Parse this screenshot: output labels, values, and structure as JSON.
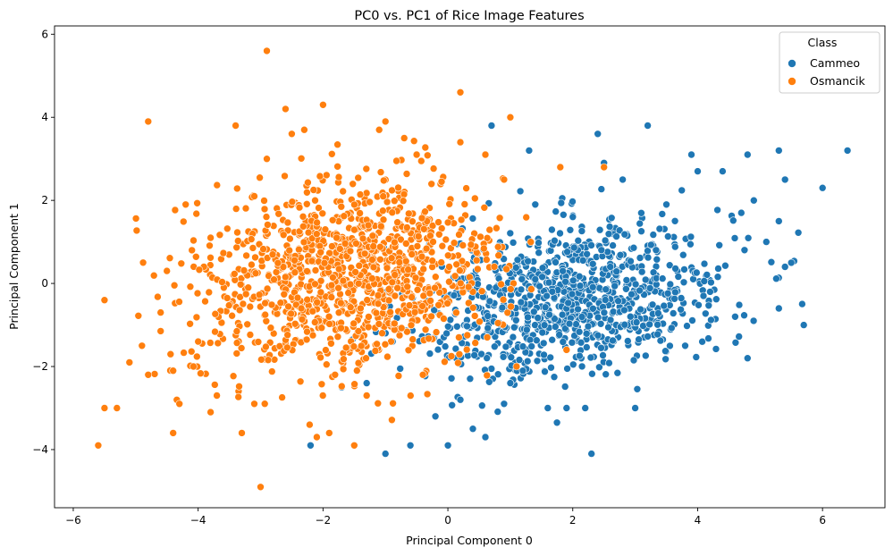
{
  "chart_data": {
    "type": "scatter",
    "title": "PC0 vs. PC1 of Rice Image Features",
    "xlabel": "Principal Component 0",
    "ylabel": "Principal Component 1",
    "xlim": [
      -6.3,
      7.0
    ],
    "ylim": [
      -5.4,
      6.2
    ],
    "xticks": [
      -6,
      -4,
      -2,
      0,
      2,
      4,
      6
    ],
    "yticks": [
      -4,
      -2,
      0,
      2,
      4,
      6
    ],
    "xtick_labels": [
      "−6",
      "−4",
      "−2",
      "0",
      "2",
      "4",
      "6"
    ],
    "ytick_labels": [
      "−4",
      "−2",
      "0",
      "2",
      "4",
      "6"
    ],
    "grid": false,
    "legend": {
      "title": "Class",
      "placement": "top-right",
      "entries": [
        "Cammeo",
        "Osmancik"
      ]
    },
    "series": [
      {
        "name": "Cammeo",
        "color": "#1f77b4",
        "points": [
          [
            6.4,
            3.2
          ],
          [
            6.0,
            2.3
          ],
          [
            5.7,
            -1.0
          ],
          [
            5.5,
            0.5
          ],
          [
            5.4,
            0.4
          ],
          [
            5.4,
            2.5
          ],
          [
            5.3,
            3.2
          ],
          [
            5.3,
            1.5
          ],
          [
            5.3,
            -0.6
          ],
          [
            5.1,
            1.0
          ],
          [
            4.9,
            2.0
          ],
          [
            4.8,
            3.1
          ],
          [
            4.8,
            -1.8
          ],
          [
            4.7,
            1.7
          ],
          [
            4.6,
            -0.8
          ],
          [
            4.4,
            2.7
          ],
          [
            4.2,
            -0.2
          ],
          [
            4.0,
            2.7
          ],
          [
            3.9,
            3.1
          ],
          [
            3.8,
            -1.5
          ],
          [
            3.5,
            1.9
          ],
          [
            3.2,
            3.8
          ],
          [
            3.0,
            -3.0
          ],
          [
            2.8,
            2.5
          ],
          [
            2.6,
            0.4
          ],
          [
            2.5,
            2.9
          ],
          [
            2.4,
            3.6
          ],
          [
            2.3,
            -4.1
          ],
          [
            2.2,
            -3.0
          ],
          [
            2.0,
            1.6
          ],
          [
            1.9,
            -3.0
          ],
          [
            1.6,
            -3.0
          ],
          [
            1.4,
            1.9
          ],
          [
            1.3,
            3.2
          ],
          [
            1.2,
            -2.1
          ],
          [
            0.9,
            -2.9
          ],
          [
            0.7,
            3.8
          ],
          [
            0.6,
            -3.7
          ],
          [
            0.4,
            -3.5
          ],
          [
            0.0,
            -3.9
          ],
          [
            -0.2,
            -3.2
          ],
          [
            -0.6,
            -3.9
          ],
          [
            -1.0,
            -4.1
          ],
          [
            -1.3,
            -2.4
          ],
          [
            -2.2,
            -3.9
          ],
          [
            -1.7,
            -2.5
          ],
          [
            0.2,
            -2.8
          ],
          [
            1.0,
            -2.4
          ]
        ]
      },
      {
        "name": "Osmancik",
        "color": "#ff7f0e",
        "points": [
          [
            -5.6,
            -3.9
          ],
          [
            -5.5,
            -3.0
          ],
          [
            -5.3,
            -3.0
          ],
          [
            -5.5,
            -0.4
          ],
          [
            -5.1,
            -1.9
          ],
          [
            -4.9,
            -1.5
          ],
          [
            -4.8,
            3.9
          ],
          [
            -4.8,
            -2.2
          ],
          [
            -4.6,
            -0.7
          ],
          [
            -4.5,
            0.3
          ],
          [
            -4.4,
            -3.6
          ],
          [
            -4.4,
            -2.1
          ],
          [
            -4.3,
            -2.9
          ],
          [
            -4.2,
            1.9
          ],
          [
            -4.1,
            0.8
          ],
          [
            -4.0,
            -1.4
          ],
          [
            -3.8,
            -3.1
          ],
          [
            -3.8,
            1.1
          ],
          [
            -3.7,
            -2.7
          ],
          [
            -3.4,
            3.8
          ],
          [
            -3.3,
            -3.6
          ],
          [
            -3.1,
            -2.9
          ],
          [
            -3.0,
            -4.9
          ],
          [
            -2.9,
            5.6
          ],
          [
            -2.9,
            3.0
          ],
          [
            -2.6,
            4.2
          ],
          [
            -2.5,
            3.6
          ],
          [
            -2.3,
            3.7
          ],
          [
            -2.0,
            4.3
          ],
          [
            -2.1,
            -3.7
          ],
          [
            -1.9,
            -3.6
          ],
          [
            -1.5,
            -3.9
          ],
          [
            -1.1,
            3.7
          ],
          [
            -1.0,
            3.9
          ],
          [
            -0.7,
            3.5
          ],
          [
            -0.5,
            3.1
          ],
          [
            0.2,
            4.6
          ],
          [
            0.2,
            3.4
          ],
          [
            0.6,
            3.1
          ],
          [
            1.0,
            4.0
          ],
          [
            0.9,
            2.5
          ],
          [
            1.8,
            2.8
          ],
          [
            2.5,
            2.8
          ],
          [
            1.9,
            -1.6
          ],
          [
            1.1,
            -2.0
          ],
          [
            -0.4,
            -2.2
          ],
          [
            -1.3,
            -2.7
          ],
          [
            -3.1,
            2.1
          ]
        ]
      }
    ]
  }
}
